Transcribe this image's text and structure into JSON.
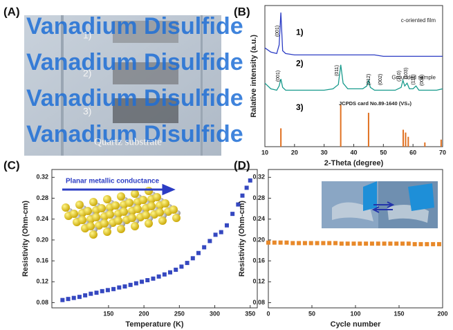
{
  "photo": {
    "panel_label": "(A)",
    "watermark": [
      "Vanadium Disulfide",
      "Vanadium Disulfide",
      "Vanadium Disulfide",
      "Vanadium Disulfide"
    ],
    "sample_labels": [
      "1)",
      "2)",
      "3)"
    ],
    "substrate_label": "Quartz substrate"
  },
  "chart_data": [
    {
      "type": "line",
      "panel_label": "(B)",
      "x_label": "2-Theta (degree)",
      "y_label": "Ralative intensity (a.u.)",
      "x": [
        10,
        12,
        14,
        14.8,
        15.4,
        16,
        17,
        20,
        25,
        30,
        33,
        34.8,
        35.6,
        36.4,
        38,
        40,
        43,
        44.4,
        45,
        45.6,
        47,
        50,
        54,
        56,
        56.6,
        57.2,
        58,
        58.8,
        60,
        61,
        62,
        64,
        66,
        68,
        70
      ],
      "series": [
        {
          "name": "c-oriented film",
          "label": "1)",
          "color": "#2b3cc4",
          "values": [
            70,
            67,
            66,
            72,
            95,
            68,
            66,
            65,
            65,
            65,
            65,
            65,
            65,
            65,
            65,
            65,
            65,
            65,
            65,
            65,
            65,
            64,
            64,
            64,
            64,
            64,
            64,
            64,
            64,
            64,
            64,
            64,
            64,
            64,
            64
          ]
        },
        {
          "name": "Grounded sample",
          "label": "2)",
          "color": "#179a8c",
          "values": [
            45,
            41,
            40,
            43,
            48,
            42,
            40,
            40,
            40,
            40,
            41,
            44,
            58,
            45,
            41,
            41,
            41,
            43,
            47,
            42,
            40,
            40,
            40,
            42,
            47,
            43,
            45,
            41,
            41,
            43,
            40,
            40,
            40,
            40,
            41
          ]
        }
      ],
      "sticks": {
        "name": "JCPDS card No.89-1640 (VS₂)",
        "label": "3)",
        "color": "#e07020",
        "x": [
          15.4,
          35.6,
          45,
          56.7,
          57.5,
          58.4,
          64,
          69.5
        ],
        "values": [
          13,
          30,
          24,
          12,
          10,
          7,
          3,
          5
        ]
      },
      "peak_labels": [
        "(001)",
        "(001)",
        "(011)",
        "(012)",
        "(002)",
        "(110)",
        "(103)",
        "(111)",
        "(004)"
      ],
      "xlim": [
        10,
        70
      ],
      "xticks": [
        10,
        20,
        30,
        40,
        50,
        60,
        70
      ],
      "ylim": [
        0,
        100
      ]
    },
    {
      "type": "scatter",
      "panel_label": "(C)",
      "x_label": "Temperature (K)",
      "y_label": "Resistivity (Ohm-cm)",
      "annotation": "Planar metallic conductance",
      "color": "#3548c0",
      "x": [
        85,
        93,
        101,
        109,
        117,
        125,
        133,
        141,
        149,
        157,
        165,
        173,
        181,
        189,
        197,
        205,
        213,
        221,
        229,
        237,
        245,
        253,
        261,
        269,
        277,
        285,
        293,
        301,
        309,
        317,
        325,
        333,
        339,
        345,
        350
      ],
      "values": [
        0.085,
        0.087,
        0.089,
        0.091,
        0.094,
        0.097,
        0.099,
        0.102,
        0.104,
        0.106,
        0.109,
        0.111,
        0.114,
        0.117,
        0.12,
        0.123,
        0.126,
        0.13,
        0.134,
        0.138,
        0.143,
        0.149,
        0.156,
        0.165,
        0.175,
        0.186,
        0.198,
        0.21,
        0.215,
        0.228,
        0.25,
        0.268,
        0.285,
        0.3,
        0.314
      ],
      "xlim": [
        70,
        360
      ],
      "xticks": [
        150,
        200,
        250,
        300,
        350
      ],
      "ylim": [
        0.07,
        0.335
      ],
      "yticks": [
        0.08,
        0.12,
        0.16,
        {
          "value": 0.2,
          "label": "0.20"
        },
        0.24,
        0.28,
        0.32
      ]
    },
    {
      "type": "scatter",
      "panel_label": "(D)",
      "x_label": "Cycle number",
      "y_label": "Resistivity (Ohm-cm)",
      "color": "#e8892a",
      "x": [
        0,
        7,
        14,
        21,
        28,
        35,
        42,
        49,
        56,
        63,
        70,
        77,
        84,
        91,
        98,
        105,
        112,
        119,
        126,
        133,
        140,
        147,
        154,
        161,
        168,
        175,
        182,
        189,
        196
      ],
      "values": [
        0.195,
        0.195,
        0.195,
        0.195,
        0.194,
        0.194,
        0.194,
        0.194,
        0.194,
        0.194,
        0.194,
        0.194,
        0.193,
        0.193,
        0.193,
        0.193,
        0.193,
        0.193,
        0.193,
        0.193,
        0.193,
        0.193,
        0.193,
        0.193,
        0.192,
        0.192,
        0.192,
        0.192,
        0.192
      ],
      "xlim": [
        0,
        200
      ],
      "xticks": [
        0,
        50,
        100,
        150,
        200
      ],
      "ylim": [
        0.07,
        0.335
      ],
      "yticks": [
        0.08,
        0.12,
        0.16,
        {
          "value": 0.2,
          "label": "0.20"
        },
        0.24,
        0.28,
        0.32
      ]
    }
  ]
}
